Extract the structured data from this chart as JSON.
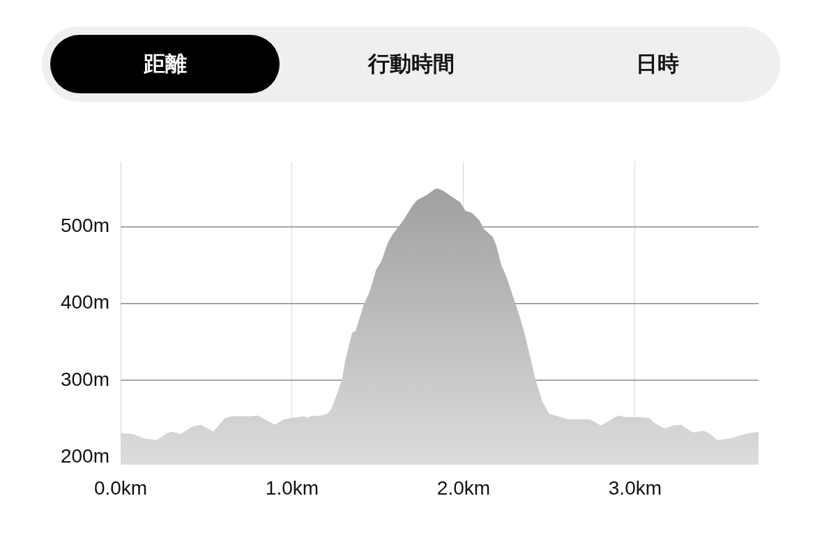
{
  "chart_data": {
    "type": "area",
    "annotations": [
      "距離",
      "行動時間",
      "日時"
    ],
    "x": [
      0.0,
      0.07,
      0.14,
      0.21,
      0.27,
      0.3,
      0.35,
      0.42,
      0.47,
      0.54,
      0.61,
      0.65,
      0.76,
      0.8,
      0.84,
      0.9,
      0.95,
      1.0,
      1.07,
      1.09,
      1.11,
      1.17,
      1.21,
      1.23,
      1.25,
      1.29,
      1.31,
      1.35,
      1.37,
      1.42,
      1.45,
      1.49,
      1.52,
      1.56,
      1.58,
      1.62,
      1.65,
      1.7,
      1.73,
      1.79,
      1.83,
      1.85,
      1.88,
      1.94,
      1.98,
      2.01,
      2.05,
      2.09,
      2.12,
      2.17,
      2.19,
      2.22,
      2.25,
      2.29,
      2.33,
      2.36,
      2.39,
      2.42,
      2.46,
      2.5,
      2.55,
      2.61,
      2.74,
      2.76,
      2.8,
      2.84,
      2.9,
      2.95,
      3.02,
      3.08,
      3.11,
      3.17,
      3.22,
      3.27,
      3.3,
      3.34,
      3.4,
      3.43,
      3.48,
      3.57,
      3.64,
      3.72
    ],
    "values": [
      231,
      230,
      224,
      222,
      231,
      233,
      230,
      240,
      242,
      233,
      251,
      253,
      253,
      254,
      249,
      242,
      249,
      251,
      253,
      251,
      253,
      254,
      257,
      263,
      275,
      300,
      326,
      362,
      364,
      400,
      414,
      444,
      455,
      480,
      488,
      500,
      509,
      527,
      535,
      542,
      549,
      550,
      547,
      538,
      532,
      521,
      518,
      509,
      497,
      487,
      476,
      450,
      435,
      408,
      381,
      357,
      329,
      300,
      272,
      256,
      253,
      249,
      249,
      246,
      241,
      246,
      254,
      252,
      252,
      251,
      245,
      237,
      241,
      242,
      237,
      232,
      234,
      231,
      222,
      225,
      230,
      233
    ],
    "color": "#9a9a9a",
    "xlim": [
      0,
      3.72
    ],
    "ylim": [
      190,
      585
    ],
    "xticks": [
      {
        "value": 0,
        "label": "0.0km"
      },
      {
        "value": 1,
        "label": "1.0km"
      },
      {
        "value": 2,
        "label": "2.0km"
      },
      {
        "value": 3,
        "label": "3.0km"
      }
    ],
    "yticks": [
      {
        "value": 200,
        "label": "200m"
      },
      {
        "value": 300,
        "label": "300m"
      },
      {
        "value": 400,
        "label": "400m"
      },
      {
        "value": 500,
        "label": "500m"
      }
    ],
    "grid": true
  }
}
